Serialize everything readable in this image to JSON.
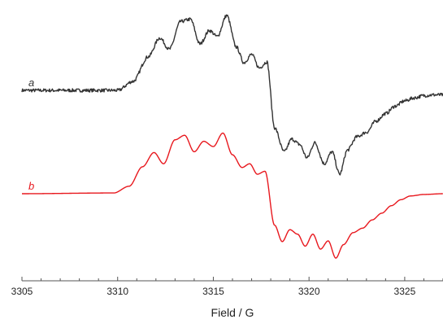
{
  "chart_data": {
    "type": "line",
    "title": "",
    "xlabel": "Field / G",
    "ylabel": "",
    "xlim": [
      3305,
      3327
    ],
    "x_ticks": [
      3305,
      3310,
      3315,
      3320,
      3325
    ],
    "x_tick_labels": [
      "3305",
      "3310",
      "3315",
      "3320",
      "3325"
    ],
    "y_axis_shown": false,
    "grid": false,
    "series": [
      {
        "name": "a",
        "color": "#333333",
        "noisy": true,
        "offset": 1.38,
        "points": [
          [
            3305,
            0.0
          ],
          [
            3310.0,
            0.0
          ],
          [
            3310.8,
            0.12
          ],
          [
            3311.6,
            0.45
          ],
          [
            3312.2,
            0.7
          ],
          [
            3312.7,
            0.55
          ],
          [
            3313.3,
            0.92
          ],
          [
            3313.8,
            0.95
          ],
          [
            3314.3,
            0.62
          ],
          [
            3314.8,
            0.8
          ],
          [
            3315.2,
            0.72
          ],
          [
            3315.7,
            1.0
          ],
          [
            3316.2,
            0.58
          ],
          [
            3316.6,
            0.37
          ],
          [
            3317.0,
            0.48
          ],
          [
            3317.4,
            0.3
          ],
          [
            3317.8,
            0.38
          ],
          [
            3318.2,
            -0.5
          ],
          [
            3318.7,
            -0.82
          ],
          [
            3319.1,
            -0.65
          ],
          [
            3319.5,
            -0.72
          ],
          [
            3319.9,
            -0.9
          ],
          [
            3320.3,
            -0.7
          ],
          [
            3320.8,
            -0.98
          ],
          [
            3321.2,
            -0.82
          ],
          [
            3321.6,
            -1.12
          ],
          [
            3322.0,
            -0.8
          ],
          [
            3322.5,
            -0.62
          ],
          [
            3323.0,
            -0.56
          ],
          [
            3323.5,
            -0.41
          ],
          [
            3324.0,
            -0.31
          ],
          [
            3324.5,
            -0.21
          ],
          [
            3325.0,
            -0.14
          ],
          [
            3325.5,
            -0.1
          ],
          [
            3326.0,
            -0.07
          ],
          [
            3326.5,
            -0.06
          ],
          [
            3327,
            -0.06
          ]
        ]
      },
      {
        "name": "b",
        "color": "#e8181e",
        "noisy": false,
        "offset": 0.0,
        "points": [
          [
            3305,
            0.0
          ],
          [
            3309.8,
            0.01
          ],
          [
            3310.6,
            0.1
          ],
          [
            3311.3,
            0.36
          ],
          [
            3311.9,
            0.55
          ],
          [
            3312.4,
            0.4
          ],
          [
            3313.0,
            0.72
          ],
          [
            3313.5,
            0.78
          ],
          [
            3314.0,
            0.56
          ],
          [
            3314.5,
            0.7
          ],
          [
            3315.0,
            0.63
          ],
          [
            3315.5,
            0.81
          ],
          [
            3316.0,
            0.52
          ],
          [
            3316.5,
            0.35
          ],
          [
            3316.9,
            0.4
          ],
          [
            3317.3,
            0.26
          ],
          [
            3317.7,
            0.3
          ],
          [
            3318.2,
            -0.42
          ],
          [
            3318.6,
            -0.64
          ],
          [
            3319.0,
            -0.48
          ],
          [
            3319.4,
            -0.54
          ],
          [
            3319.8,
            -0.7
          ],
          [
            3320.2,
            -0.54
          ],
          [
            3320.6,
            -0.74
          ],
          [
            3321.0,
            -0.63
          ],
          [
            3321.4,
            -0.86
          ],
          [
            3321.8,
            -0.68
          ],
          [
            3322.3,
            -0.52
          ],
          [
            3322.8,
            -0.46
          ],
          [
            3323.3,
            -0.35
          ],
          [
            3323.8,
            -0.26
          ],
          [
            3324.3,
            -0.16
          ],
          [
            3324.8,
            -0.08
          ],
          [
            3325.3,
            -0.03
          ],
          [
            3326.0,
            -0.01
          ],
          [
            3327,
            0.0
          ]
        ]
      }
    ]
  }
}
